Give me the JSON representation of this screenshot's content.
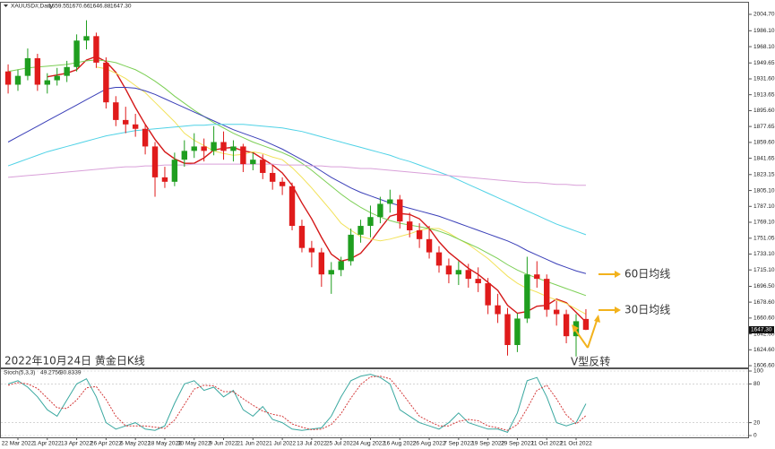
{
  "chart_data": {
    "type": "candlestick",
    "title": "XAUUSD#,Daily",
    "last_close_label": "1647.30",
    "categories": [
      null,
      "22 Mar 2022",
      null,
      null,
      "1 Apr 2022",
      null,
      null,
      "13 Apr 2022",
      null,
      null,
      "26 Apr 2022",
      null,
      null,
      "6 May 2022",
      null,
      null,
      "18 May 2022",
      null,
      null,
      "30 May 2022",
      null,
      null,
      "9 Jun 2022",
      null,
      null,
      "21 Jun 2022",
      null,
      null,
      "1 Jul 2022",
      null,
      null,
      "13 Jul 2022",
      null,
      null,
      "25 Jul 2022",
      null,
      null,
      "4 Aug 2022",
      null,
      null,
      "16 Aug 2022",
      null,
      null,
      "26 Aug 2022",
      null,
      null,
      "7 Sep 2022",
      null,
      null,
      "19 Sep 2022",
      null,
      null,
      "29 Sep 2022",
      null,
      null,
      "11 Oct 2022",
      null,
      null,
      "21 Oct 2022",
      null
    ],
    "open": [
      1940,
      1925,
      1935,
      1955,
      1925,
      1930,
      1935,
      1945,
      1975,
      1980,
      1950,
      1905,
      1885,
      1880,
      1875,
      1855,
      1820,
      1815,
      1840,
      1850,
      1855,
      1850,
      1860,
      1850,
      1855,
      1835,
      1840,
      1825,
      1815,
      1810,
      1765,
      1740,
      1735,
      1710,
      1715,
      1725,
      1755,
      1765,
      1775,
      1790,
      1795,
      1770,
      1760,
      1750,
      1735,
      1720,
      1710,
      1715,
      1705,
      1700,
      1675,
      1665,
      1630,
      1660,
      1710,
      1705,
      1670,
      1665,
      1640,
      1659.55
    ],
    "high": [
      1948,
      1942,
      1966,
      1960,
      1938,
      1944,
      1952,
      1982,
      1998,
      1984,
      1956,
      1912,
      1900,
      1892,
      1880,
      1860,
      1832,
      1848,
      1862,
      1870,
      1864,
      1878,
      1872,
      1862,
      1858,
      1848,
      1846,
      1834,
      1820,
      1814,
      1772,
      1748,
      1740,
      1724,
      1730,
      1762,
      1772,
      1788,
      1798,
      1806,
      1800,
      1780,
      1768,
      1765,
      1742,
      1728,
      1725,
      1722,
      1718,
      1706,
      1688,
      1672,
      1666,
      1730,
      1725,
      1710,
      1680,
      1670,
      1665,
      1670.66
    ],
    "low": [
      1915,
      1918,
      1930,
      1918,
      1915,
      1924,
      1928,
      1940,
      1965,
      1944,
      1898,
      1878,
      1870,
      1866,
      1846,
      1798,
      1808,
      1810,
      1832,
      1842,
      1838,
      1845,
      1840,
      1838,
      1826,
      1828,
      1818,
      1806,
      1800,
      1760,
      1735,
      1718,
      1696,
      1688,
      1708,
      1720,
      1746,
      1752,
      1768,
      1780,
      1762,
      1752,
      1740,
      1728,
      1712,
      1700,
      1698,
      1695,
      1690,
      1665,
      1655,
      1618,
      1622,
      1655,
      1695,
      1662,
      1652,
      1632,
      1617,
      1646.88
    ],
    "close": [
      1925,
      1935,
      1955,
      1925,
      1930,
      1935,
      1945,
      1975,
      1980,
      1950,
      1905,
      1885,
      1880,
      1875,
      1855,
      1820,
      1815,
      1840,
      1850,
      1855,
      1850,
      1860,
      1850,
      1855,
      1835,
      1840,
      1825,
      1815,
      1810,
      1765,
      1740,
      1735,
      1710,
      1715,
      1725,
      1755,
      1765,
      1775,
      1790,
      1795,
      1770,
      1760,
      1750,
      1735,
      1720,
      1710,
      1715,
      1705,
      1700,
      1675,
      1665,
      1630,
      1660,
      1710,
      1705,
      1670,
      1665,
      1640,
      1657,
      1647.3
    ],
    "up_color": "#1f9e1f",
    "down_color": "#e01b1b",
    "series": [
      {
        "color": "#d41818",
        "values": [
          null,
          null,
          null,
          null,
          1934,
          1936,
          1938,
          1942,
          1953,
          1957,
          1951,
          1939,
          1920,
          1899,
          1880,
          1863,
          1849,
          1841,
          1836,
          1836,
          1842,
          1851,
          1853,
          1854,
          1850,
          1848,
          1841,
          1834,
          1825,
          1811,
          1791,
          1773,
          1752,
          1733,
          1725,
          1728,
          1734,
          1747,
          1762,
          1776,
          1779,
          1778,
          1773,
          1762,
          1747,
          1735,
          1726,
          1717,
          1710,
          1701,
          1692,
          1675,
          1666,
          1668,
          1674,
          1675,
          1682,
          1678,
          1667,
          1656
        ]
      },
      {
        "color": "#f2e25a",
        "values": [
          null,
          null,
          null,
          null,
          null,
          null,
          null,
          null,
          null,
          1945,
          1943,
          1938,
          1932,
          1924,
          1916,
          1905,
          1894,
          1883,
          1870,
          1862,
          1856,
          1850,
          1847,
          1845,
          1846,
          1849,
          1847,
          1843,
          1840,
          1831,
          1820,
          1808,
          1795,
          1782,
          1768,
          1760,
          1753,
          1750,
          1748,
          1750,
          1753,
          1756,
          1760,
          1762,
          1762,
          1757,
          1750,
          1744,
          1736,
          1728,
          1718,
          1708,
          1700,
          1694,
          1690,
          1685,
          1681,
          1677,
          1671,
          1665
        ]
      },
      {
        "color": "#7ccf55",
        "values": [
          1940,
          1942,
          1944,
          1945,
          1946,
          1947,
          1948,
          1950,
          1952,
          1953,
          1952,
          1950,
          1946,
          1942,
          1936,
          1929,
          1921,
          1912,
          1904,
          1896,
          1889,
          1882,
          1876,
          1870,
          1865,
          1860,
          1856,
          1852,
          1848,
          1843,
          1836,
          1828,
          1819,
          1810,
          1801,
          1793,
          1786,
          1780,
          1775,
          1771,
          1768,
          1766,
          1764,
          1762,
          1759,
          1755,
          1750,
          1745,
          1740,
          1734,
          1728,
          1721,
          1715,
          1710,
          1706,
          1702,
          1698,
          1694,
          1690,
          1686
        ]
      },
      {
        "color": "#3a3fb8",
        "values": [
          1860,
          1866,
          1872,
          1878,
          1884,
          1890,
          1896,
          1902,
          1908,
          1914,
          1920,
          1922,
          1922,
          1921,
          1918,
          1914,
          1909,
          1904,
          1899,
          1894,
          1889,
          1884,
          1879,
          1874,
          1870,
          1866,
          1862,
          1857,
          1852,
          1846,
          1840,
          1834,
          1827,
          1820,
          1814,
          1808,
          1803,
          1799,
          1795,
          1791,
          1788,
          1785,
          1782,
          1779,
          1776,
          1772,
          1768,
          1764,
          1760,
          1756,
          1752,
          1748,
          1743,
          1737,
          1732,
          1727,
          1722,
          1718,
          1714,
          1711
        ]
      },
      {
        "color": "#4fd2e6",
        "values": [
          1833,
          1837,
          1841,
          1845,
          1849,
          1852,
          1855,
          1858,
          1861,
          1864,
          1867,
          1869,
          1871,
          1873,
          1874,
          1875,
          1876,
          1877,
          1878,
          1879,
          1879,
          1880,
          1880,
          1880,
          1880,
          1879,
          1878,
          1877,
          1876,
          1874,
          1872,
          1869,
          1866,
          1863,
          1860,
          1857,
          1854,
          1851,
          1848,
          1845,
          1841,
          1838,
          1834,
          1830,
          1826,
          1822,
          1817,
          1812,
          1807,
          1802,
          1797,
          1792,
          1787,
          1782,
          1777,
          1772,
          1767,
          1763,
          1759,
          1755
        ]
      },
      {
        "color": "#d9a0d9",
        "values": [
          1820,
          1821,
          1822,
          1823,
          1824,
          1825,
          1826,
          1827,
          1828,
          1829,
          1830,
          1831,
          1832,
          1832,
          1833,
          1833,
          1834,
          1834,
          1834,
          1835,
          1835,
          1835,
          1835,
          1835,
          1835,
          1835,
          1835,
          1835,
          1834,
          1834,
          1834,
          1833,
          1833,
          1832,
          1832,
          1831,
          1830,
          1830,
          1829,
          1828,
          1827,
          1826,
          1825,
          1824,
          1823,
          1822,
          1821,
          1820,
          1819,
          1818,
          1817,
          1816,
          1815,
          1814,
          1814,
          1813,
          1812,
          1812,
          1811,
          1811
        ]
      }
    ],
    "ylim": [
      1604.6,
      2016.9
    ],
    "yticks": [
      {
        "value": 2004.7,
        "label": "2004.70"
      },
      {
        "value": 1986.1,
        "label": "1986.10"
      },
      {
        "value": 1968.1,
        "label": "1968.10"
      },
      1949.65,
      {
        "value": 1931.6,
        "label": "1931.60"
      },
      1913.65,
      {
        "value": 1895.6,
        "label": "1895.60"
      },
      1877.65,
      {
        "value": 1859.6,
        "label": "1859.60"
      },
      1841.65,
      1823.15,
      {
        "value": 1805.1,
        "label": "1805.10"
      },
      {
        "value": 1787.1,
        "label": "1787.10"
      },
      {
        "value": 1769.1,
        "label": "1769.10"
      },
      1751.05,
      {
        "value": 1733.1,
        "label": "1733.10"
      },
      {
        "value": 1715.1,
        "label": "1715.10"
      },
      {
        "value": 1696.5,
        "label": "1696.50"
      },
      {
        "value": 1678.6,
        "label": "1678.60"
      },
      {
        "value": 1660.6,
        "label": "1660.60"
      },
      {
        "value": 1642.6,
        "label": "1642.60"
      },
      {
        "value": 1624.6,
        "label": "1624.60"
      },
      {
        "value": 1606.6,
        "label": "1606.60"
      }
    ],
    "annotations": [
      "60日均线",
      "30日均线",
      "2022年10月24日 黄金日K线",
      "V型反转"
    ],
    "stoch": {
      "label": "Stoch(5,3,3)",
      "ylim": [
        0,
        100
      ],
      "yticks": [
        100,
        80,
        20,
        0
      ],
      "series": [
        {
          "color": "#3aa8a0",
          "dashed": false,
          "values": [
            80,
            85,
            75,
            60,
            40,
            30,
            55,
            80,
            88,
            60,
            20,
            10,
            15,
            20,
            10,
            8,
            15,
            50,
            80,
            85,
            70,
            75,
            60,
            70,
            40,
            30,
            45,
            25,
            20,
            10,
            8,
            10,
            12,
            30,
            60,
            85,
            92,
            95,
            90,
            80,
            40,
            30,
            20,
            15,
            10,
            20,
            35,
            20,
            15,
            10,
            10,
            5,
            35,
            85,
            90,
            60,
            20,
            15,
            20,
            49.2756
          ]
        },
        {
          "color": "#d43a3a",
          "dashed": true,
          "values": [
            78,
            82,
            80,
            73,
            58,
            43,
            42,
            55,
            74,
            76,
            56,
            30,
            15,
            15,
            15,
            13,
            11,
            24,
            48,
            72,
            78,
            77,
            68,
            68,
            57,
            47,
            38,
            33,
            30,
            18,
            13,
            9,
            10,
            17,
            34,
            58,
            79,
            91,
            92,
            88,
            70,
            50,
            30,
            22,
            15,
            15,
            22,
            25,
            23,
            15,
            12,
            8,
            17,
            42,
            70,
            78,
            57,
            32,
            18,
            30.8339
          ]
        }
      ]
    }
  }
}
